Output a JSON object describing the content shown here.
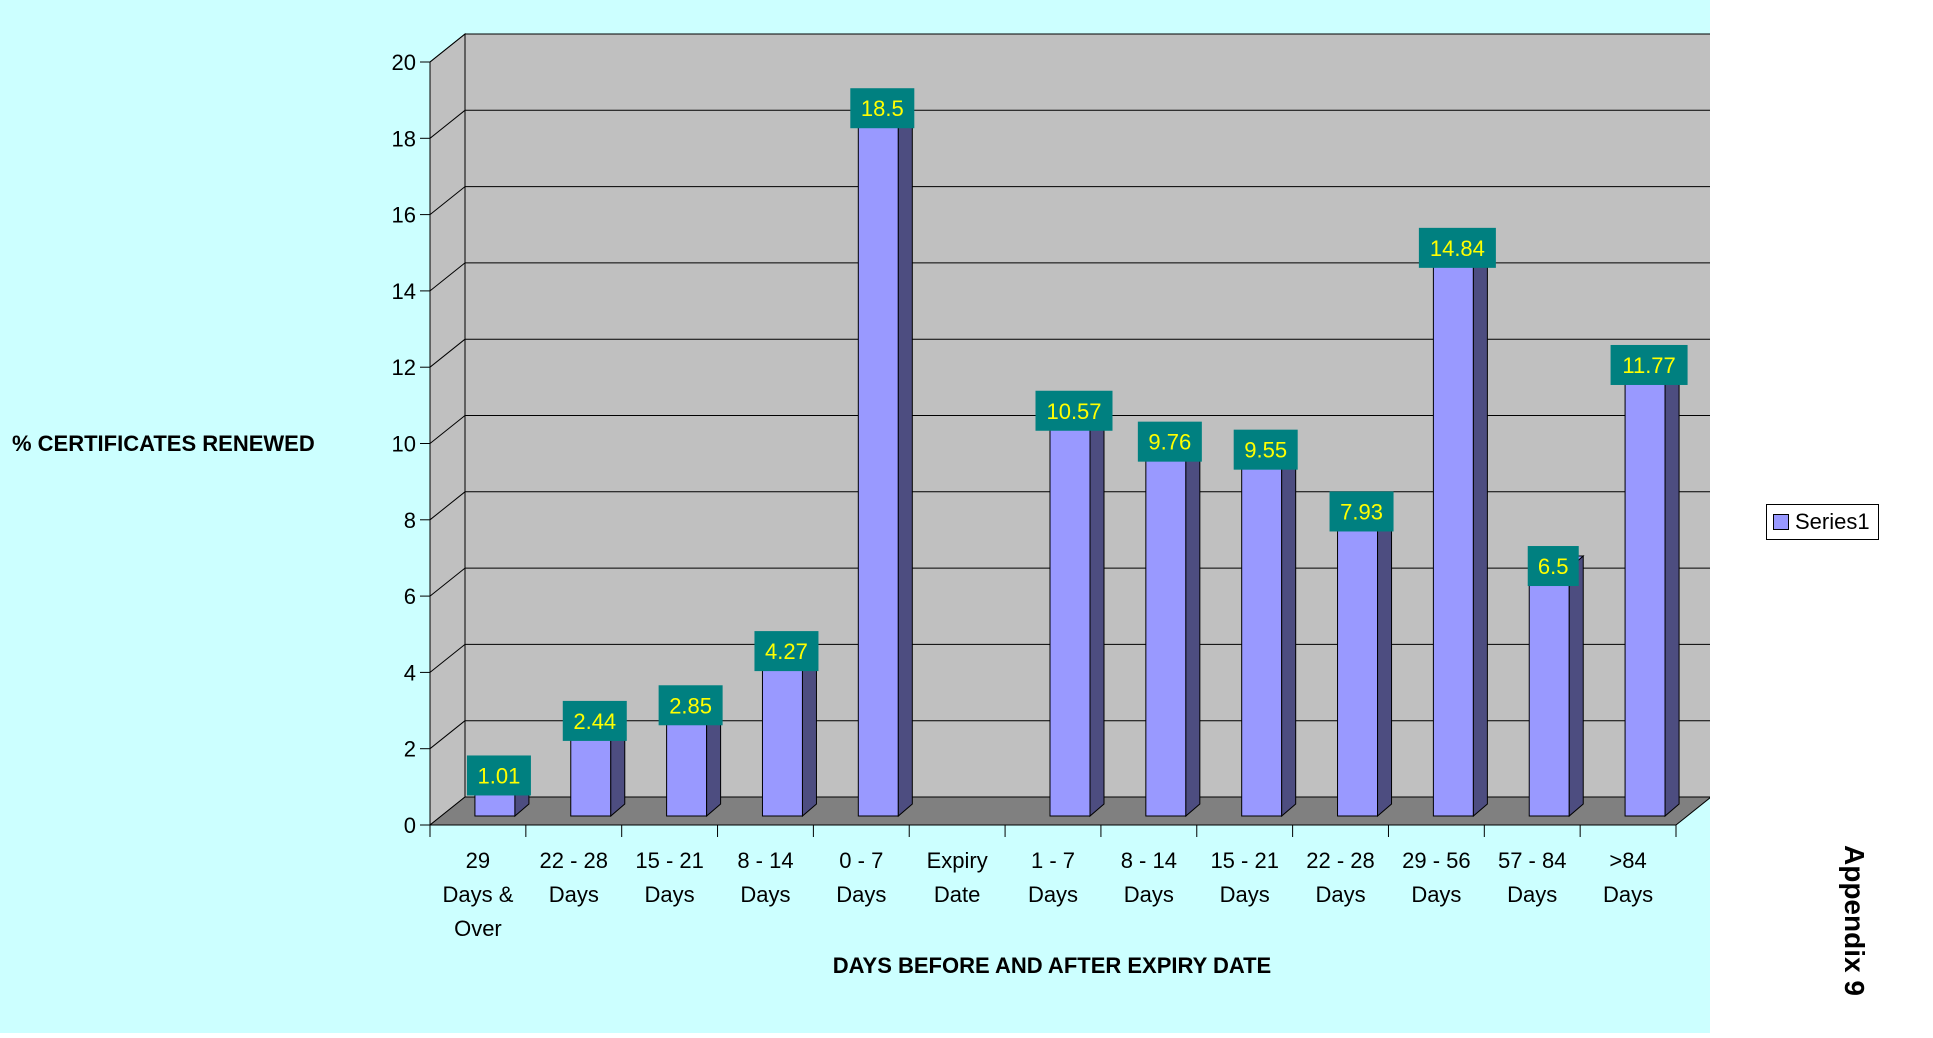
{
  "chart_data": {
    "type": "bar",
    "title": "",
    "xlabel": "DAYS BEFORE AND AFTER EXPIRY DATE",
    "ylabel": "% CERTIFICATES RENEWED",
    "ylim": [
      0,
      20
    ],
    "ytick_step": 2,
    "grid": true,
    "legend": "right",
    "categories": [
      "29 Days & Over",
      "22 - 28 Days",
      "15 - 21 Days",
      "8 - 14 Days",
      "0 - 7 Days",
      "Expiry Date",
      "1 - 7 Days",
      "8 - 14 Days",
      "15 - 21 Days",
      "22 - 28 Days",
      "29 - 56 Days",
      "57 - 84 Days",
      ">84 Days"
    ],
    "category_lines": [
      [
        "29",
        "Days &",
        "Over"
      ],
      [
        "22 - 28",
        "Days"
      ],
      [
        "15 - 21",
        "Days"
      ],
      [
        "8 - 14",
        "Days"
      ],
      [
        "0 - 7",
        "Days"
      ],
      [
        "Expiry",
        "Date"
      ],
      [
        "1 - 7",
        "Days"
      ],
      [
        "8 - 14",
        "Days"
      ],
      [
        "15 - 21",
        "Days"
      ],
      [
        "22 - 28",
        "Days"
      ],
      [
        "29 - 56",
        "Days"
      ],
      [
        "57 - 84",
        "Days"
      ],
      [
        ">84",
        "Days"
      ]
    ],
    "series": [
      {
        "name": "Series1",
        "values": [
          1.01,
          2.44,
          2.85,
          4.27,
          18.5,
          null,
          10.57,
          9.76,
          9.55,
          7.93,
          14.84,
          6.5,
          11.77
        ],
        "labels": [
          "1.01",
          "2.44",
          "2.85",
          "4.27",
          "18.5",
          "",
          "10.57",
          "9.76",
          "9.55",
          "7.93",
          "14.84",
          "6.5",
          "11.77"
        ],
        "color": "#9999ff"
      }
    ],
    "colors": {
      "outer_background": "#ccffff",
      "plot_wall": "#c0c0c0",
      "floor": "#808080",
      "bar_front": "#9999ff",
      "bar_side": "#4d4d80",
      "label_background": "#008080",
      "label_text": "#ffff00"
    }
  },
  "side_text": "Appendix 9"
}
